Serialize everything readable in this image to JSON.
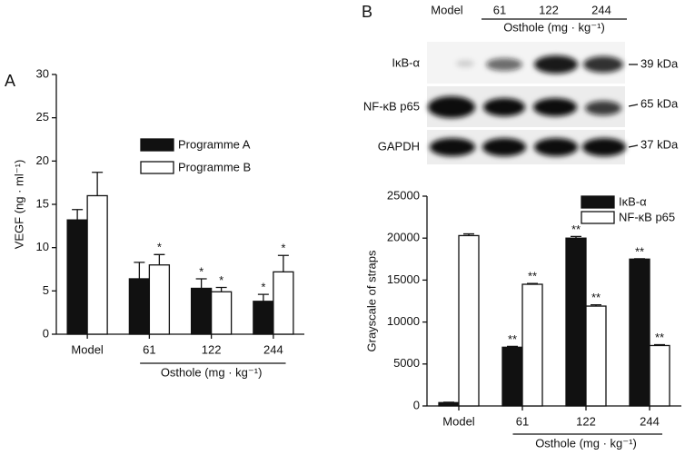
{
  "panels": [
    "A",
    "B"
  ],
  "blot": {
    "lane_labels": [
      "Model",
      "61",
      "122",
      "244"
    ],
    "group_label": "Osthole (mg · kg⁻¹)",
    "rows": [
      {
        "label": "IκB-α",
        "size": "39 kDa"
      },
      {
        "label": "NF-κB p65",
        "size": "65 kDa"
      },
      {
        "label": "GAPDH",
        "size": "37 kDa"
      }
    ]
  },
  "chart_data": [
    {
      "type": "bar",
      "ylabel": "VEGF (ng · ml⁻¹)",
      "categories": [
        "Model",
        "61",
        "122",
        "244"
      ],
      "group_label": "Osthole (mg · kg⁻¹)",
      "series": [
        {
          "name": "Programme A",
          "color": "#111111",
          "values": [
            13.2,
            6.4,
            5.3,
            3.8
          ],
          "errors": [
            1.2,
            1.9,
            1.1,
            0.8
          ],
          "significance": [
            null,
            null,
            "*",
            "*"
          ]
        },
        {
          "name": "Programme B",
          "color": "#ffffff",
          "values": [
            16.0,
            8.0,
            4.9,
            7.2
          ],
          "errors": [
            2.7,
            1.2,
            0.5,
            1.9
          ],
          "significance": [
            null,
            "*",
            "*",
            "*"
          ]
        }
      ],
      "ylim": [
        0,
        30
      ],
      "yticks": [
        0,
        5,
        10,
        15,
        20,
        25,
        30
      ],
      "legend": "upper right"
    },
    {
      "type": "bar",
      "ylabel": "Grayscale of straps",
      "categories": [
        "Model",
        "61",
        "122",
        "244"
      ],
      "group_label": "Osthole (mg · kg⁻¹)",
      "series": [
        {
          "name": "IκB-α",
          "color": "#111111",
          "values": [
            400,
            7000,
            20000,
            17500
          ],
          "errors": [
            50,
            100,
            200,
            50
          ],
          "significance": [
            null,
            "**",
            "**",
            "**"
          ]
        },
        {
          "name": "NF-κB p65",
          "color": "#ffffff",
          "values": [
            20300,
            14500,
            11900,
            7200
          ],
          "errors": [
            200,
            100,
            150,
            100
          ],
          "significance": [
            null,
            "**",
            "**",
            "**"
          ]
        }
      ],
      "ylim": [
        0,
        25000
      ],
      "yticks": [
        0,
        5000,
        10000,
        15000,
        20000,
        25000
      ],
      "legend": "upper right"
    }
  ]
}
